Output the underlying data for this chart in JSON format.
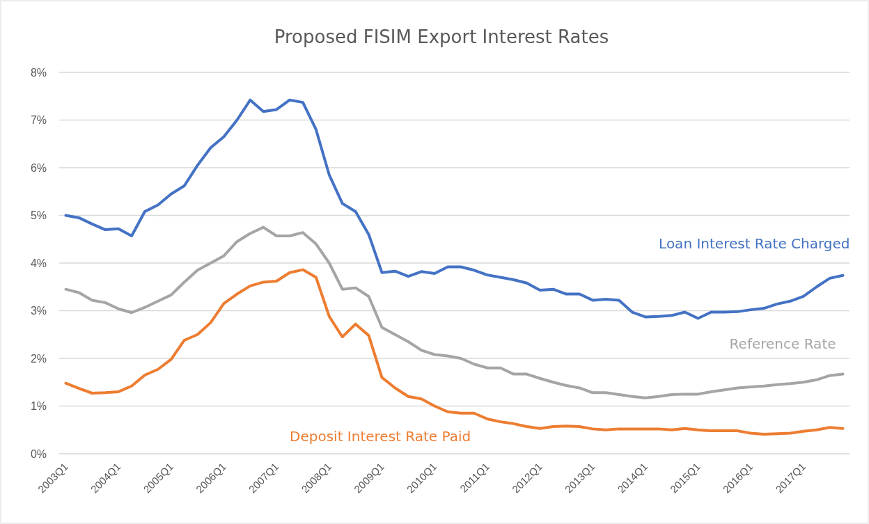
{
  "chart_data": {
    "type": "line",
    "title": "Proposed FISIM Export Interest Rates",
    "categories": [
      "2003Q1",
      null,
      null,
      null,
      "2004Q1",
      null,
      null,
      null,
      "2005Q1",
      null,
      null,
      null,
      "2006Q1",
      null,
      null,
      null,
      "2007Q1",
      null,
      null,
      null,
      "2008Q1",
      null,
      null,
      null,
      "2009Q1",
      null,
      null,
      null,
      "2010Q1",
      null,
      null,
      null,
      "2011Q1",
      null,
      null,
      null,
      "2012Q1",
      null,
      null,
      null,
      "2013Q1",
      null,
      null,
      null,
      "2014Q1",
      null,
      null,
      null,
      "2015Q1",
      null,
      null,
      null,
      "2016Q1",
      null,
      null,
      null,
      "2017Q1",
      null,
      null,
      null
    ],
    "series": [
      {
        "name": "Loan Interest Rate Charged",
        "color": "#4472c4",
        "values": [
          5.0,
          4.95,
          4.82,
          4.7,
          4.72,
          4.57,
          5.08,
          5.22,
          5.45,
          5.62,
          6.05,
          6.42,
          6.65,
          7.0,
          7.42,
          7.18,
          7.22,
          7.42,
          7.37,
          6.8,
          5.85,
          5.25,
          5.08,
          4.6,
          3.8,
          3.83,
          3.72,
          3.82,
          3.78,
          3.92,
          3.92,
          3.85,
          3.75,
          3.7,
          3.65,
          3.58,
          3.43,
          3.45,
          3.35,
          3.35,
          3.22,
          3.24,
          3.22,
          2.97,
          2.87,
          2.88,
          2.9,
          2.97,
          2.84,
          2.97,
          2.97,
          2.98,
          3.02,
          3.05,
          3.14,
          3.2,
          3.3,
          3.5,
          3.68,
          3.74
        ]
      },
      {
        "name": "Reference Rate",
        "color": "#a5a5a5",
        "values": [
          3.45,
          3.38,
          3.22,
          3.17,
          3.04,
          2.96,
          3.07,
          3.2,
          3.33,
          3.6,
          3.85,
          4.0,
          4.15,
          4.45,
          4.62,
          4.75,
          4.57,
          4.57,
          4.64,
          4.4,
          4.0,
          3.45,
          3.48,
          3.3,
          2.65,
          2.5,
          2.35,
          2.17,
          2.08,
          2.05,
          2.0,
          1.88,
          1.8,
          1.8,
          1.67,
          1.67,
          1.58,
          1.5,
          1.43,
          1.38,
          1.28,
          1.28,
          1.24,
          1.2,
          1.17,
          1.2,
          1.24,
          1.25,
          1.25,
          1.3,
          1.34,
          1.38,
          1.4,
          1.42,
          1.45,
          1.47,
          1.5,
          1.55,
          1.64,
          1.67
        ]
      },
      {
        "name": "Deposit Interest Rate Paid",
        "color": "#ed7d31",
        "values": [
          1.48,
          1.37,
          1.27,
          1.28,
          1.3,
          1.42,
          1.65,
          1.77,
          1.98,
          2.38,
          2.5,
          2.75,
          3.15,
          3.35,
          3.52,
          3.6,
          3.62,
          3.8,
          3.86,
          3.7,
          2.88,
          2.45,
          2.72,
          2.48,
          1.6,
          1.38,
          1.2,
          1.15,
          1.0,
          0.88,
          0.85,
          0.85,
          0.73,
          0.67,
          0.63,
          0.57,
          0.53,
          0.57,
          0.58,
          0.57,
          0.52,
          0.5,
          0.52,
          0.52,
          0.52,
          0.52,
          0.5,
          0.53,
          0.5,
          0.48,
          0.48,
          0.48,
          0.43,
          0.41,
          0.42,
          0.43,
          0.47,
          0.5,
          0.55,
          0.53
        ]
      }
    ],
    "ylim": [
      0,
      8
    ],
    "yticks": [
      {
        "value": 0,
        "label": "0%"
      },
      {
        "value": 1,
        "label": "1%"
      },
      {
        "value": 2,
        "label": "2%"
      },
      {
        "value": 3,
        "label": "3%"
      },
      {
        "value": 4,
        "label": "4%"
      },
      {
        "value": 5,
        "label": "5%"
      },
      {
        "value": 6,
        "label": "6%"
      },
      {
        "value": 7,
        "label": "7%"
      },
      {
        "value": 8,
        "label": "8%"
      }
    ],
    "grid": "y",
    "legend": false,
    "marker": "none",
    "line_style": "solid"
  }
}
